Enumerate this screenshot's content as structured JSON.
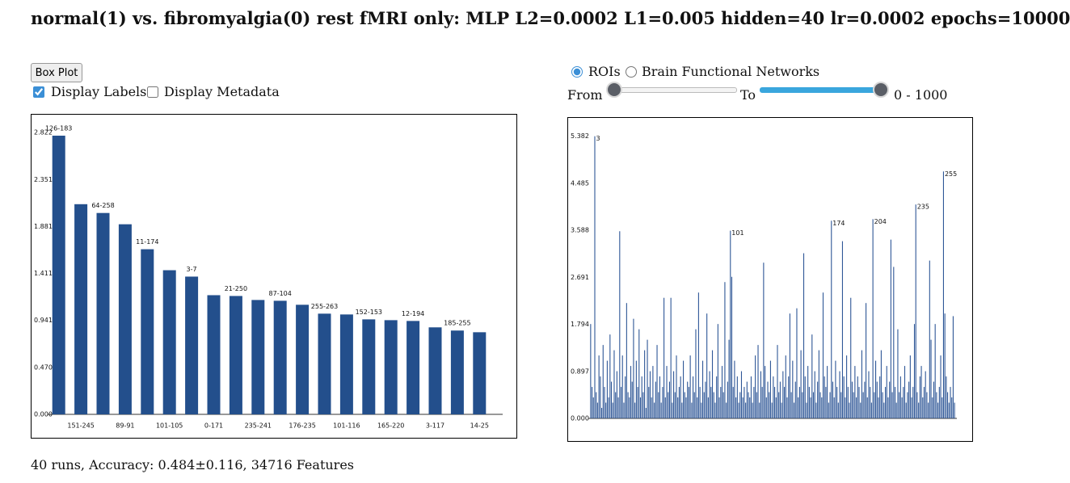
{
  "header": {
    "title": "normal(1) vs. fibromyalgia(0) rest fMRI only: MLP L2=0.0002 L1=0.005 hidden=40 lr=0.0002 epochs=10000"
  },
  "controls": {
    "button": "Box Plot",
    "checkboxes": [
      {
        "label": "Display Labels",
        "checked": true
      },
      {
        "label": "Display Metadata",
        "checked": false
      }
    ],
    "radios": [
      {
        "label": "ROIs",
        "checked": true
      },
      {
        "label": "Brain Functional Networks",
        "checked": false
      }
    ],
    "range": {
      "from_label": "From",
      "to_label": "To",
      "text": "0 - 1000"
    }
  },
  "chart_data": [
    {
      "type": "bar",
      "categories": [
        "126-183",
        "151-245",
        "64-258",
        "89-91",
        "11-174",
        "101-105",
        "3-7",
        "0-171",
        "21-250",
        "235-241",
        "87-104",
        "176-235",
        "255-263",
        "101-116",
        "152-153",
        "165-220",
        "12-194",
        "3-117",
        "185-255",
        "14-25"
      ],
      "values": [
        2.79,
        2.104,
        2.016,
        1.903,
        1.653,
        1.443,
        1.379,
        1.193,
        1.185,
        1.145,
        1.137,
        1.097,
        1.008,
        1.0,
        0.951,
        0.943,
        0.935,
        0.871,
        0.839,
        0.822
      ],
      "color": "#234f8c",
      "ylim": [
        0,
        3
      ],
      "yticks": [
        {
          "value": 0,
          "label": "0.000"
        },
        {
          "value": 0.47,
          "label": "0.470"
        },
        0.941,
        1.411,
        1.881,
        2.351,
        2.822
      ]
    },
    {
      "type": "bar",
      "categories": [
        null,
        null,
        null,
        "3",
        null,
        null,
        null,
        null,
        null,
        null,
        null,
        null,
        null,
        null,
        null,
        null,
        null,
        null,
        null,
        null,
        null,
        null,
        null,
        null,
        null,
        null,
        null,
        null,
        null,
        null,
        null,
        null,
        null,
        null,
        null,
        null,
        null,
        null,
        null,
        null,
        null,
        null,
        null,
        null,
        null,
        null,
        null,
        null,
        null,
        null,
        null,
        null,
        null,
        null,
        null,
        null,
        null,
        null,
        null,
        null,
        null,
        null,
        null,
        null,
        null,
        null,
        null,
        null,
        null,
        null,
        null,
        null,
        null,
        null,
        null,
        null,
        null,
        null,
        null,
        null,
        null,
        null,
        null,
        null,
        null,
        null,
        null,
        null,
        null,
        null,
        null,
        null,
        null,
        null,
        null,
        null,
        null,
        null,
        null,
        null,
        null,
        "101",
        null,
        null,
        null,
        null,
        null,
        null,
        null,
        null,
        null,
        null,
        null,
        null,
        null,
        null,
        null,
        null,
        null,
        null,
        null,
        null,
        null,
        null,
        null,
        null,
        null,
        null,
        null,
        null,
        null,
        null,
        null,
        null,
        null,
        null,
        null,
        null,
        null,
        null,
        null,
        null,
        null,
        null,
        null,
        null,
        null,
        null,
        null,
        null,
        null,
        null,
        null,
        null,
        null,
        null,
        null,
        null,
        null,
        null,
        null,
        null,
        null,
        null,
        null,
        null,
        null,
        null,
        null,
        null,
        null,
        null,
        null,
        null,
        "174",
        null,
        null,
        null,
        null,
        null,
        null,
        null,
        null,
        null,
        null,
        null,
        null,
        null,
        null,
        null,
        null,
        null,
        null,
        null,
        null,
        null,
        null,
        null,
        null,
        null,
        null,
        null,
        null,
        null,
        "204",
        null,
        null,
        null,
        null,
        null,
        null,
        null,
        null,
        null,
        null,
        null,
        null,
        null,
        null,
        null,
        null,
        null,
        null,
        null,
        null,
        null,
        null,
        null,
        null,
        null,
        null,
        null,
        null,
        null,
        null,
        "235",
        null,
        null,
        null,
        null,
        null,
        null,
        null,
        null,
        null,
        null,
        null,
        null,
        null,
        null,
        null,
        null,
        null,
        null,
        null,
        "255",
        null,
        null,
        null,
        null,
        null,
        null,
        null,
        null
      ],
      "values": [
        1.8,
        0.6,
        0.4,
        5.382,
        0.5,
        0.3,
        1.2,
        0.8,
        0.2,
        1.4,
        0.6,
        0.3,
        1.1,
        0.4,
        1.6,
        0.7,
        0.3,
        1.3,
        0.5,
        0.9,
        0.4,
        3.57,
        0.6,
        1.2,
        0.3,
        0.8,
        2.2,
        0.5,
        0.4,
        1.0,
        0.7,
        1.9,
        0.3,
        1.1,
        0.6,
        1.7,
        0.4,
        0.8,
        0.5,
        1.3,
        0.2,
        1.5,
        0.6,
        0.9,
        0.4,
        1.0,
        0.3,
        0.7,
        1.4,
        0.5,
        0.8,
        0.3,
        0.6,
        2.3,
        0.4,
        1.0,
        0.5,
        0.7,
        2.3,
        0.3,
        0.9,
        0.5,
        1.2,
        0.4,
        0.6,
        0.8,
        0.3,
        1.1,
        0.5,
        0.4,
        0.7,
        0.6,
        1.2,
        0.3,
        0.8,
        0.5,
        1.7,
        0.4,
        2.4,
        0.6,
        0.3,
        1.1,
        0.5,
        0.7,
        2.0,
        0.4,
        0.9,
        0.6,
        1.3,
        0.5,
        0.3,
        0.8,
        1.8,
        0.4,
        0.6,
        1.0,
        0.5,
        2.6,
        0.3,
        0.7,
        1.5,
        3.58,
        2.7,
        0.6,
        1.1,
        0.4,
        0.8,
        0.3,
        0.5,
        0.9,
        0.4,
        0.6,
        0.3,
        0.7,
        0.5,
        0.4,
        0.8,
        0.3,
        0.6,
        1.2,
        0.5,
        1.4,
        0.3,
        0.9,
        0.6,
        2.97,
        1.0,
        0.4,
        0.7,
        0.5,
        1.1,
        0.3,
        0.8,
        0.6,
        0.4,
        1.4,
        0.5,
        0.7,
        0.3,
        0.9,
        0.6,
        1.2,
        0.4,
        0.8,
        2.0,
        0.5,
        1.1,
        0.3,
        0.7,
        2.1,
        0.4,
        0.6,
        1.3,
        0.5,
        3.15,
        0.8,
        0.3,
        1.0,
        0.6,
        0.4,
        1.6,
        0.5,
        0.9,
        0.3,
        0.7,
        1.3,
        0.5,
        0.4,
        2.4,
        0.8,
        0.6,
        1.0,
        0.3,
        0.5,
        3.77,
        0.7,
        0.4,
        1.1,
        0.6,
        0.3,
        0.9,
        0.5,
        3.38,
        0.8,
        0.4,
        1.2,
        0.6,
        0.3,
        2.3,
        0.7,
        0.5,
        1.0,
        0.4,
        0.8,
        0.6,
        0.3,
        1.3,
        0.5,
        0.7,
        2.2,
        0.4,
        0.9,
        0.6,
        0.3,
        3.8,
        0.5,
        1.1,
        0.7,
        0.4,
        0.8,
        1.3,
        0.5,
        0.3,
        0.6,
        1.0,
        0.4,
        0.7,
        3.41,
        0.5,
        2.89,
        0.6,
        0.3,
        1.7,
        0.5,
        0.8,
        0.4,
        0.6,
        1.0,
        0.3,
        0.5,
        0.7,
        1.2,
        0.4,
        0.6,
        1.8,
        4.08,
        0.5,
        0.3,
        0.8,
        1.0,
        0.4,
        0.6,
        0.9,
        0.5,
        0.3,
        3.01,
        1.5,
        0.4,
        0.7,
        1.8,
        0.5,
        0.3,
        0.6,
        1.2,
        0.4,
        4.71,
        2.0,
        0.8,
        0.5,
        0.3,
        0.6,
        0.4,
        1.95,
        0.3
      ],
      "color": "#2f5797",
      "ylim": [
        0,
        5.5
      ],
      "yticks": [
        {
          "value": 0,
          "label": "0.000"
        },
        0.897,
        1.794,
        2.691,
        3.588,
        4.485,
        5.382
      ]
    }
  ],
  "footer": {
    "text": "40 runs, Accuracy: 0.484±0.116, 34716 Features"
  }
}
